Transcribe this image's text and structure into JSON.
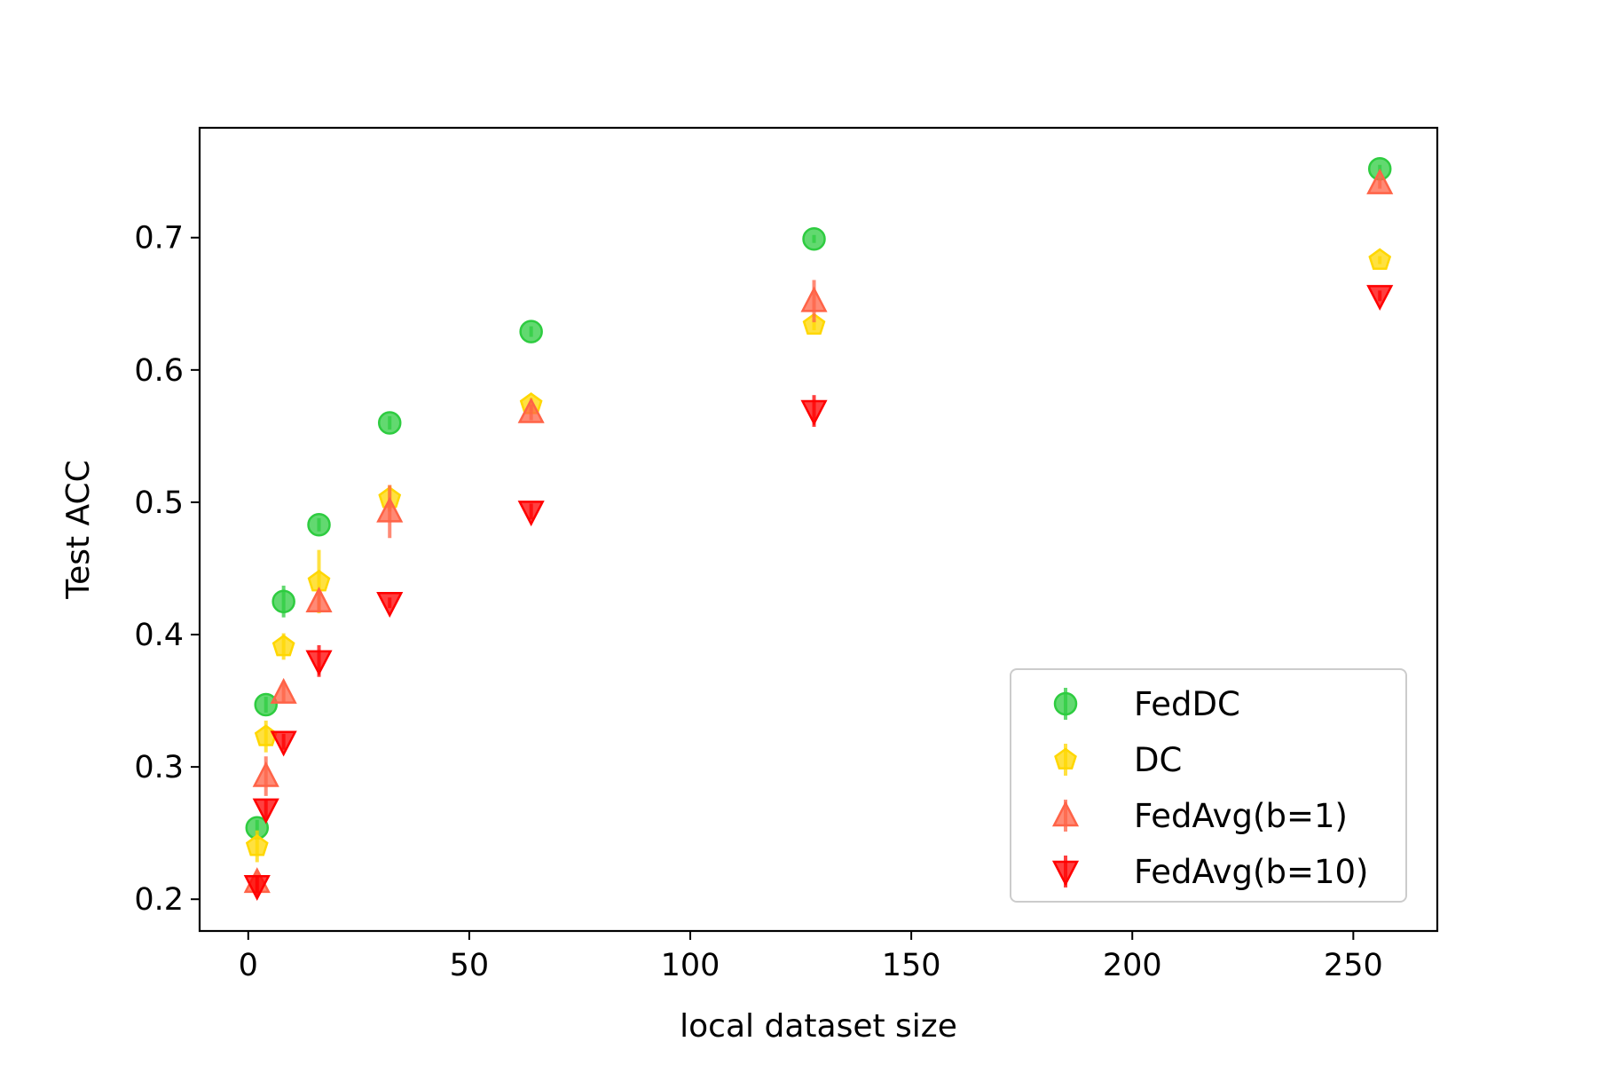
{
  "chart_data": {
    "type": "scatter",
    "title": "",
    "xlabel": "local dataset size",
    "ylabel": "Test ACC",
    "xlim": [
      -11,
      269
    ],
    "ylim": [
      0.176,
      0.783
    ],
    "xticks": [
      0,
      50,
      100,
      150,
      200,
      250
    ],
    "yticks": [
      0.2,
      0.3,
      0.4,
      0.5,
      0.6,
      0.7
    ],
    "ytick_labels": [
      "0.2",
      "0.3",
      "0.4",
      "0.5",
      "0.6",
      "0.7"
    ],
    "grid": false,
    "legend_position": "lower-right",
    "x": [
      2,
      4,
      8,
      16,
      32,
      64,
      128,
      256
    ],
    "series": [
      {
        "name": "FedDC",
        "marker": "circle",
        "color": "#2ecc40",
        "values": [
          0.254,
          0.347,
          0.425,
          0.483,
          0.56,
          0.629,
          0.699,
          0.752
        ],
        "errors": [
          0.006,
          0.006,
          0.012,
          0.005,
          0.005,
          0.004,
          0.003,
          0.003
        ]
      },
      {
        "name": "DC",
        "marker": "pentagon",
        "color": "#ffd700",
        "values": [
          0.24,
          0.323,
          0.391,
          0.44,
          0.503,
          0.574,
          0.634,
          0.683
        ],
        "errors": [
          0.012,
          0.012,
          0.01,
          0.024,
          0.01,
          0.005,
          0.004,
          0.003
        ]
      },
      {
        "name": "FedAvg(b=1)",
        "marker": "triangle-up",
        "color": "#ff6347",
        "values": [
          0.213,
          0.293,
          0.356,
          0.425,
          0.493,
          0.568,
          0.652,
          0.741
        ],
        "errors": [
          0.008,
          0.015,
          0.008,
          0.008,
          0.02,
          0.006,
          0.016,
          0.004
        ]
      },
      {
        "name": "FedAvg(b=10)",
        "marker": "triangle-down",
        "color": "#ff0000",
        "values": [
          0.21,
          0.268,
          0.319,
          0.38,
          0.424,
          0.493,
          0.569,
          0.656
        ],
        "errors": [
          0.008,
          0.008,
          0.006,
          0.012,
          0.004,
          0.006,
          0.012,
          0.004
        ]
      }
    ]
  }
}
